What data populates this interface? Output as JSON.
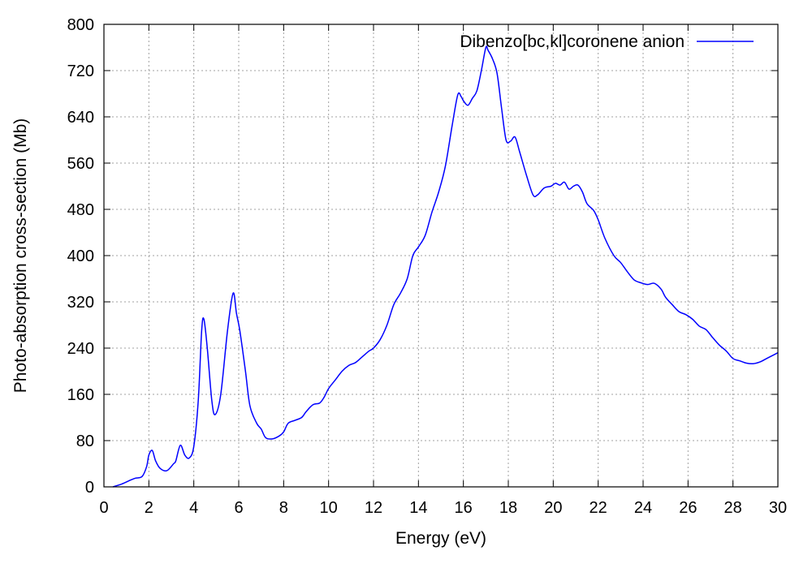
{
  "chart_data": {
    "type": "line",
    "title": "",
    "xlabel": "Energy (eV)",
    "ylabel": "Photo-absorption cross-section (Mb)",
    "xlim": [
      0,
      30
    ],
    "ylim": [
      0,
      800
    ],
    "x_ticks": [
      0,
      2,
      4,
      6,
      8,
      10,
      12,
      14,
      16,
      18,
      20,
      22,
      24,
      26,
      28,
      30
    ],
    "y_ticks": [
      0,
      80,
      160,
      240,
      320,
      400,
      480,
      560,
      640,
      720,
      800
    ],
    "x_tick_labels": [
      "0",
      "2",
      "4",
      "6",
      "8",
      "10",
      "12",
      "14",
      "16",
      "18",
      "20",
      "22",
      "24",
      "26",
      "28",
      "30"
    ],
    "y_tick_labels": [
      "0",
      "80",
      "160",
      "240",
      "320",
      "400",
      "480",
      "560",
      "640",
      "720",
      "800"
    ],
    "grid": true,
    "legend_position": "top-right",
    "series": [
      {
        "name": "Dibenzo[bc,kl]coronene anion",
        "color": "#0000ff",
        "x": [
          0.4,
          0.8,
          1.2,
          1.4,
          1.7,
          1.9,
          2.0,
          2.15,
          2.3,
          2.5,
          2.8,
          3.1,
          3.2,
          3.4,
          3.6,
          3.8,
          4.0,
          4.2,
          4.35,
          4.45,
          4.6,
          4.8,
          4.95,
          5.2,
          5.5,
          5.75,
          5.9,
          6.05,
          6.3,
          6.5,
          6.8,
          7.0,
          7.2,
          7.5,
          7.8,
          8.0,
          8.2,
          8.5,
          8.8,
          9.0,
          9.3,
          9.6,
          9.8,
          10.0,
          10.3,
          10.6,
          10.9,
          11.2,
          11.5,
          11.8,
          12.0,
          12.3,
          12.6,
          12.9,
          13.2,
          13.5,
          13.75,
          14.0,
          14.3,
          14.6,
          14.9,
          15.2,
          15.5,
          15.75,
          15.9,
          16.0,
          16.2,
          16.4,
          16.6,
          16.8,
          17.0,
          17.1,
          17.3,
          17.5,
          17.7,
          17.9,
          18.1,
          18.3,
          18.5,
          18.8,
          19.1,
          19.3,
          19.6,
          19.9,
          20.1,
          20.3,
          20.5,
          20.7,
          20.9,
          21.1,
          21.3,
          21.5,
          21.8,
          22.0,
          22.3,
          22.7,
          23.0,
          23.3,
          23.6,
          23.9,
          24.2,
          24.5,
          24.8,
          25.0,
          25.3,
          25.6,
          25.9,
          26.2,
          26.5,
          26.8,
          27.1,
          27.4,
          27.7,
          28.0,
          28.3,
          28.6,
          28.9,
          29.2,
          29.5,
          29.8,
          30.0
        ],
        "y": [
          0,
          5,
          12,
          15,
          18,
          35,
          55,
          63,
          45,
          32,
          28,
          40,
          45,
          72,
          55,
          50,
          70,
          150,
          270,
          290,
          240,
          150,
          125,
          160,
          270,
          335,
          300,
          270,
          200,
          140,
          110,
          100,
          85,
          83,
          88,
          95,
          110,
          115,
          120,
          130,
          142,
          145,
          155,
          170,
          185,
          200,
          210,
          215,
          225,
          235,
          240,
          255,
          280,
          315,
          335,
          360,
          400,
          415,
          435,
          475,
          510,
          555,
          625,
          678,
          675,
          668,
          660,
          672,
          685,
          720,
          760,
          755,
          740,
          715,
          655,
          600,
          598,
          605,
          580,
          540,
          505,
          505,
          517,
          520,
          525,
          522,
          527,
          515,
          520,
          522,
          510,
          490,
          478,
          462,
          430,
          400,
          388,
          372,
          358,
          353,
          350,
          352,
          342,
          328,
          315,
          303,
          298,
          290,
          278,
          272,
          258,
          245,
          235,
          222,
          218,
          214,
          213,
          216,
          222,
          228,
          232
        ]
      }
    ]
  }
}
